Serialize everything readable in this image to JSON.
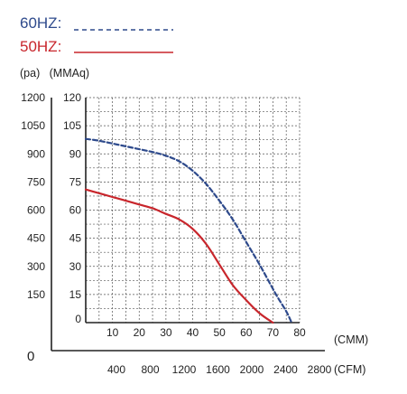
{
  "chart_data": {
    "type": "line",
    "legend": [
      {
        "label": "60HZ:",
        "color": "#2e4a8c",
        "line_style": "dashed"
      },
      {
        "label": "50HZ:",
        "color": "#c8262c",
        "line_style": "solid"
      }
    ],
    "y_units_label": "(pa)   (MMAq)",
    "y_ticks_pa": [
      "1200",
      "1050",
      "900",
      "750",
      "600",
      "450",
      "300",
      "150"
    ],
    "y_zero_pa": "0",
    "y_ticks_mmaq": [
      "120",
      "105",
      "90",
      "75",
      "60",
      "45",
      "30",
      "15",
      "0"
    ],
    "x_ticks_cmm": [
      "10",
      "20",
      "30",
      "40",
      "50",
      "60",
      "70",
      "80"
    ],
    "x_ticks_cfm": [
      "400",
      "800",
      "1200",
      "1600",
      "2000",
      "2400",
      "2800"
    ],
    "x_unit_cmm": "(CMM)",
    "x_unit_cfm": "(CFM)",
    "xlim": [
      0,
      80
    ],
    "ylim": [
      0,
      120
    ],
    "grid": true,
    "series": [
      {
        "name": "60HZ",
        "color": "#2e4a8c",
        "line_style": "dashed",
        "x": [
          0,
          5,
          10,
          15,
          20,
          25,
          30,
          35,
          40,
          45,
          50,
          55,
          60,
          65,
          70,
          72,
          75,
          77
        ],
        "y": [
          98,
          97,
          95.5,
          94,
          92.5,
          91,
          89,
          86,
          81,
          74,
          65,
          55,
          43,
          31,
          18,
          13,
          6,
          0
        ]
      },
      {
        "name": "50HZ",
        "color": "#c8262c",
        "line_style": "solid",
        "x": [
          0,
          5,
          10,
          15,
          20,
          25,
          30,
          35,
          40,
          45,
          50,
          55,
          60,
          65,
          70
        ],
        "y": [
          71,
          69,
          67,
          65,
          63,
          61,
          58,
          55,
          50,
          42,
          31,
          20,
          12,
          5,
          0
        ]
      }
    ]
  }
}
